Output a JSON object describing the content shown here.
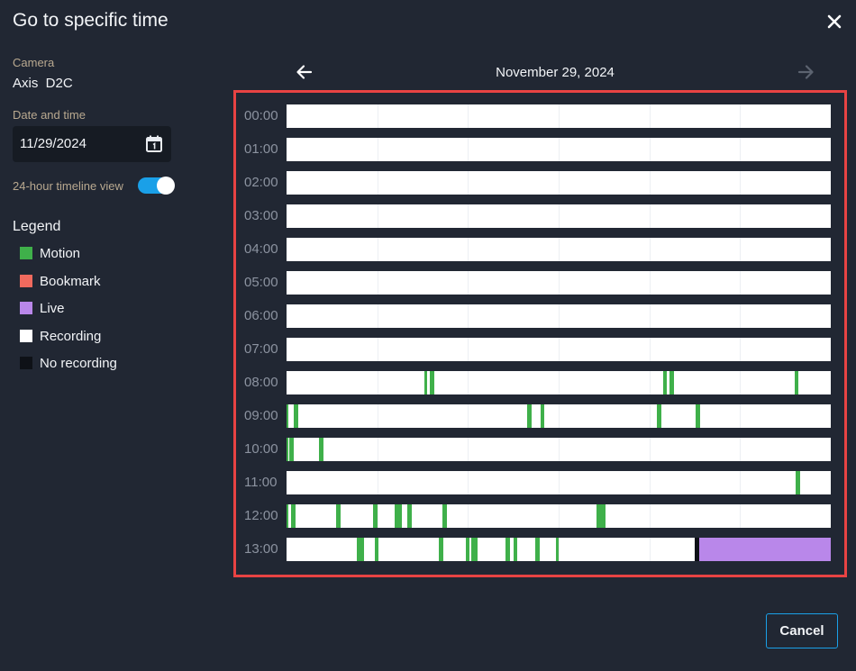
{
  "dialog": {
    "title": "Go to specific time",
    "camera_label": "Camera",
    "camera_name": "Axis  D2C",
    "date_time_label": "Date and time",
    "date_value": "11/29/2024",
    "calendar_icon": "calendar-icon",
    "toggle_label": "24-hour timeline view",
    "toggle_on": true,
    "cancel_label": "Cancel",
    "close_icon": "close-icon"
  },
  "legend": {
    "title": "Legend",
    "items": [
      {
        "label": "Motion",
        "color": "#3fb04a"
      },
      {
        "label": "Bookmark",
        "color": "#f06a5e"
      },
      {
        "label": "Live",
        "color": "#b987ea"
      },
      {
        "label": "Recording",
        "color": "#ffffff"
      },
      {
        "label": "No recording",
        "color": "#0e1117"
      }
    ]
  },
  "timeline": {
    "date": "November 29, 2024",
    "prev_icon": "arrow-left-icon",
    "next_icon": "arrow-right-icon",
    "next_enabled": false,
    "highlight_color": "#e84343",
    "hours": [
      {
        "label": "00:00",
        "segments": []
      },
      {
        "label": "01:00",
        "segments": []
      },
      {
        "label": "02:00",
        "segments": []
      },
      {
        "label": "03:00",
        "segments": []
      },
      {
        "label": "04:00",
        "segments": []
      },
      {
        "label": "05:00",
        "segments": []
      },
      {
        "label": "06:00",
        "segments": []
      },
      {
        "label": "07:00",
        "segments": []
      },
      {
        "label": "08:00",
        "segments": [
          {
            "type": "motion",
            "start_min": 15.2,
            "end_min": 15.5
          },
          {
            "type": "motion",
            "start_min": 15.8,
            "end_min": 16.3
          },
          {
            "type": "motion",
            "start_min": 41.5,
            "end_min": 41.9
          },
          {
            "type": "motion",
            "start_min": 42.2,
            "end_min": 42.7
          },
          {
            "type": "motion",
            "start_min": 56.0,
            "end_min": 56.4
          }
        ]
      },
      {
        "label": "09:00",
        "segments": [
          {
            "type": "motion",
            "start_min": 0.0,
            "end_min": 0.2
          },
          {
            "type": "motion",
            "start_min": 0.8,
            "end_min": 1.3
          },
          {
            "type": "motion",
            "start_min": 26.5,
            "end_min": 27.0
          },
          {
            "type": "motion",
            "start_min": 28.0,
            "end_min": 28.4
          },
          {
            "type": "motion",
            "start_min": 40.8,
            "end_min": 41.3
          },
          {
            "type": "motion",
            "start_min": 45.1,
            "end_min": 45.6
          }
        ]
      },
      {
        "label": "10:00",
        "segments": [
          {
            "type": "motion",
            "start_min": 0.0,
            "end_min": 0.2
          },
          {
            "type": "motion",
            "start_min": 0.3,
            "end_min": 0.8
          },
          {
            "type": "motion",
            "start_min": 3.6,
            "end_min": 4.1
          }
        ]
      },
      {
        "label": "11:00",
        "segments": [
          {
            "type": "motion",
            "start_min": 56.1,
            "end_min": 56.6
          }
        ]
      },
      {
        "label": "12:00",
        "segments": [
          {
            "type": "motion",
            "start_min": 0.0,
            "end_min": 0.2
          },
          {
            "type": "motion",
            "start_min": 0.5,
            "end_min": 1.0
          },
          {
            "type": "motion",
            "start_min": 5.5,
            "end_min": 6.0
          },
          {
            "type": "motion",
            "start_min": 9.5,
            "end_min": 10.0
          },
          {
            "type": "motion",
            "start_min": 11.9,
            "end_min": 12.7
          },
          {
            "type": "motion",
            "start_min": 13.3,
            "end_min": 13.8
          },
          {
            "type": "motion",
            "start_min": 17.2,
            "end_min": 17.7
          },
          {
            "type": "motion",
            "start_min": 34.2,
            "end_min": 35.2
          }
        ]
      },
      {
        "label": "13:00",
        "segments": [
          {
            "type": "motion",
            "start_min": 7.7,
            "end_min": 8.5
          },
          {
            "type": "motion",
            "start_min": 9.7,
            "end_min": 10.1
          },
          {
            "type": "motion",
            "start_min": 16.8,
            "end_min": 17.3
          },
          {
            "type": "motion",
            "start_min": 19.8,
            "end_min": 20.2
          },
          {
            "type": "motion",
            "start_min": 20.4,
            "end_min": 21.1
          },
          {
            "type": "motion",
            "start_min": 24.1,
            "end_min": 24.6
          },
          {
            "type": "motion",
            "start_min": 25.0,
            "end_min": 25.4
          },
          {
            "type": "motion",
            "start_min": 27.4,
            "end_min": 27.9
          },
          {
            "type": "motion",
            "start_min": 29.7,
            "end_min": 30.0
          },
          {
            "type": "no_recording",
            "start_min": 45.0,
            "end_min": 45.5
          },
          {
            "type": "live",
            "start_min": 45.5,
            "end_min": 60.0
          }
        ]
      }
    ]
  }
}
